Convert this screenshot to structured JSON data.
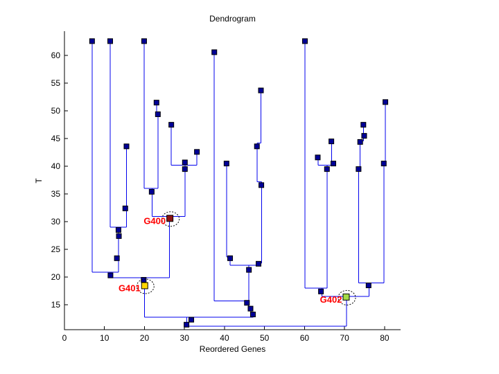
{
  "figure": {
    "title": "Dendrogram",
    "xlabel": "Reordered Genes",
    "ylabel": "T"
  },
  "colors": {
    "link_line": "#0000EE",
    "node_marker_fill": "#000096",
    "marker_edge": "#000000",
    "axis": "#000000",
    "gene_label_text": "#FF0000",
    "background": "#FFFFFF"
  },
  "chart_data": {
    "type": "dendrogram",
    "title": "Dendrogram",
    "xlabel": "Reordered Genes",
    "ylabel": "T",
    "xlim": [
      0,
      84
    ],
    "ylim": [
      10.5,
      64.4
    ],
    "x_ticks": [
      0,
      10,
      20,
      30,
      40,
      50,
      60,
      70,
      80
    ],
    "y_ticks": [
      15,
      20,
      25,
      30,
      35,
      40,
      45,
      50,
      55,
      60
    ],
    "grid": false,
    "legend": false,
    "segments": [
      [
        6.9,
        62.6,
        6.9,
        20.9
      ],
      [
        11.43,
        62.6,
        11.43,
        29.0
      ],
      [
        19.91,
        62.6,
        19.91,
        36.0
      ],
      [
        23.0,
        51.5,
        23.0,
        49.55
      ],
      [
        23.0,
        49.55,
        23.4,
        49.55
      ],
      [
        23.4,
        49.55,
        23.4,
        36.0
      ],
      [
        19.91,
        36.0,
        23.4,
        36.0
      ],
      [
        21.9,
        36.0,
        21.9,
        30.95
      ],
      [
        15.5,
        43.6,
        15.5,
        29.0
      ],
      [
        11.43,
        29.0,
        15.5,
        29.0
      ],
      [
        13.55,
        29.0,
        13.55,
        20.9
      ],
      [
        6.9,
        20.9,
        13.55,
        20.9
      ],
      [
        11.6,
        20.9,
        11.6,
        19.85
      ],
      [
        11.6,
        19.85,
        26.2,
        19.85
      ],
      [
        19.97,
        19.85,
        19.97,
        12.75
      ],
      [
        19.97,
        12.75,
        47.2,
        12.75
      ],
      [
        30.6,
        12.75,
        30.6,
        11.1
      ],
      [
        30.6,
        11.1,
        70.5,
        11.1
      ],
      [
        26.7,
        47.5,
        26.7,
        40.2
      ],
      [
        33.1,
        42.6,
        33.1,
        40.2
      ],
      [
        26.7,
        40.2,
        33.1,
        40.2
      ],
      [
        30.1,
        40.2,
        30.1,
        30.95
      ],
      [
        21.9,
        30.95,
        30.1,
        30.95
      ],
      [
        26.2,
        30.95,
        26.2,
        19.85
      ],
      [
        37.45,
        60.6,
        37.45,
        15.7
      ],
      [
        40.5,
        40.5,
        40.5,
        23.6
      ],
      [
        40.5,
        23.6,
        41.4,
        23.6
      ],
      [
        41.4,
        23.6,
        41.4,
        22.1
      ],
      [
        49.1,
        53.7,
        49.1,
        44.2
      ],
      [
        48.15,
        44.2,
        49.1,
        44.2
      ],
      [
        48.15,
        44.2,
        48.15,
        37.2
      ],
      [
        48.15,
        37.2,
        49.3,
        37.2
      ],
      [
        49.3,
        37.2,
        49.3,
        22.5
      ],
      [
        48.5,
        22.5,
        49.3,
        22.5
      ],
      [
        48.5,
        22.5,
        48.5,
        22.1
      ],
      [
        41.4,
        22.1,
        48.5,
        22.1
      ],
      [
        46.1,
        22.1,
        46.1,
        15.7
      ],
      [
        37.45,
        15.7,
        46.1,
        15.7
      ],
      [
        45.95,
        15.7,
        45.95,
        14.4
      ],
      [
        45.95,
        14.4,
        46.6,
        14.4
      ],
      [
        46.6,
        14.4,
        46.6,
        13.4
      ],
      [
        46.6,
        13.4,
        47.2,
        13.4
      ],
      [
        47.2,
        13.4,
        47.2,
        12.75
      ],
      [
        60.1,
        62.6,
        60.1,
        18.0
      ],
      [
        63.35,
        41.6,
        63.35,
        40.2
      ],
      [
        66.75,
        44.5,
        66.75,
        40.2
      ],
      [
        63.35,
        40.2,
        66.75,
        40.2
      ],
      [
        65.6,
        40.2,
        65.6,
        18.0
      ],
      [
        60.1,
        18.0,
        65.6,
        18.0
      ],
      [
        64.3,
        18.0,
        64.3,
        16.5
      ],
      [
        74.75,
        47.5,
        74.75,
        44.6
      ],
      [
        73.9,
        44.6,
        74.75,
        44.6
      ],
      [
        73.9,
        44.6,
        73.9,
        39.7
      ],
      [
        73.5,
        39.7,
        73.9,
        39.7
      ],
      [
        73.5,
        39.7,
        73.5,
        18.95
      ],
      [
        80.2,
        51.6,
        80.2,
        40.6
      ],
      [
        79.8,
        40.6,
        80.2,
        40.6
      ],
      [
        79.8,
        40.6,
        79.8,
        18.95
      ],
      [
        73.5,
        18.95,
        79.8,
        18.95
      ],
      [
        76.1,
        18.95,
        76.1,
        16.5
      ],
      [
        64.3,
        16.5,
        76.1,
        16.5
      ],
      [
        70.5,
        16.5,
        70.5,
        11.1
      ]
    ],
    "node_markers": [
      [
        6.9,
        62.6
      ],
      [
        11.43,
        62.6
      ],
      [
        19.91,
        62.6
      ],
      [
        37.45,
        60.6
      ],
      [
        60.1,
        62.6
      ],
      [
        23.0,
        51.5
      ],
      [
        23.35,
        49.4
      ],
      [
        26.7,
        47.5
      ],
      [
        33.1,
        42.6
      ],
      [
        15.5,
        43.6
      ],
      [
        15.2,
        32.4
      ],
      [
        30.1,
        40.7
      ],
      [
        30.1,
        39.5
      ],
      [
        21.8,
        35.4
      ],
      [
        13.5,
        28.5
      ],
      [
        13.6,
        27.4
      ],
      [
        13.1,
        23.4
      ],
      [
        11.5,
        20.3
      ],
      [
        19.8,
        19.5
      ],
      [
        40.5,
        40.5
      ],
      [
        41.4,
        23.4
      ],
      [
        48.1,
        43.6
      ],
      [
        49.1,
        53.7
      ],
      [
        49.2,
        36.6
      ],
      [
        48.5,
        22.4
      ],
      [
        46.1,
        21.3
      ],
      [
        45.6,
        15.35
      ],
      [
        46.5,
        14.3
      ],
      [
        47.1,
        13.25
      ],
      [
        31.7,
        12.3
      ],
      [
        30.5,
        11.4
      ],
      [
        66.7,
        44.5
      ],
      [
        63.3,
        41.6
      ],
      [
        65.6,
        39.5
      ],
      [
        67.2,
        40.5
      ],
      [
        64.1,
        17.4
      ],
      [
        74.7,
        47.5
      ],
      [
        74.9,
        45.5
      ],
      [
        73.9,
        44.4
      ],
      [
        73.5,
        39.5
      ],
      [
        80.2,
        51.6
      ],
      [
        79.8,
        40.5
      ],
      [
        76.0,
        18.5
      ]
    ],
    "highlighted_genes": [
      {
        "label": "G400",
        "x": 26.35,
        "T": 30.6,
        "color": "#8B1414"
      },
      {
        "label": "G401",
        "x": 20.05,
        "T": 18.45,
        "color": "#FFD700"
      },
      {
        "label": "G402",
        "x": 70.4,
        "T": 16.4,
        "color": "#A4DC46"
      }
    ]
  }
}
